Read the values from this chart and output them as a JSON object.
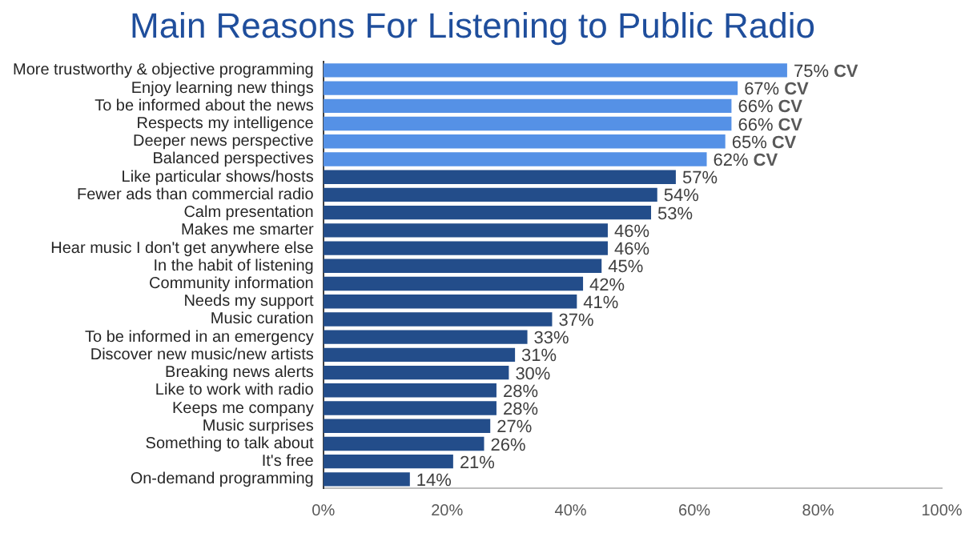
{
  "chart_data": {
    "type": "bar",
    "orientation": "horizontal",
    "title": "Main Reasons For Listening to Public Radio",
    "categories": [
      "More trustworthy & objective programming",
      "Enjoy learning new things",
      "To be informed about the news",
      "Respects my intelligence",
      "Deeper news perspective",
      "Balanced perspectives",
      "Like particular shows/hosts",
      "Fewer ads than commercial radio",
      "Calm presentation",
      "Makes me smarter",
      "Hear music I don't get anywhere else",
      "In the habit of listening",
      "Community information",
      "Needs my support",
      "Music curation",
      "To be informed in an emergency",
      "Discover new music/new artists",
      "Breaking news alerts",
      "Like to work with radio",
      "Keeps me company",
      "Music surprises",
      "Something to talk about",
      "It's free",
      "On-demand programming"
    ],
    "values": [
      75,
      67,
      66,
      66,
      65,
      62,
      57,
      54,
      53,
      46,
      46,
      45,
      42,
      41,
      37,
      33,
      31,
      30,
      28,
      28,
      27,
      26,
      21,
      14
    ],
    "value_labels": [
      "75%",
      "67%",
      "66%",
      "66%",
      "65%",
      "62%",
      "57%",
      "54%",
      "53%",
      "46%",
      "46%",
      "45%",
      "42%",
      "41%",
      "37%",
      "33%",
      "31%",
      "30%",
      "28%",
      "28%",
      "27%",
      "26%",
      "21%",
      "14%"
    ],
    "colors": [
      "#5591e6",
      "#5591e6",
      "#5591e6",
      "#5591e6",
      "#5591e6",
      "#5591e6",
      "#234d8a",
      "#234d8a",
      "#234d8a",
      "#234d8a",
      "#234d8a",
      "#234d8a",
      "#234d8a",
      "#234d8a",
      "#234d8a",
      "#234d8a",
      "#234d8a",
      "#234d8a",
      "#234d8a",
      "#234d8a",
      "#234d8a",
      "#234d8a",
      "#234d8a",
      "#234d8a"
    ],
    "xlim": [
      0,
      100
    ],
    "xticks": [
      {
        "value": 0,
        "label": "0%"
      },
      {
        "value": 20,
        "label": "20%"
      },
      {
        "value": 40,
        "label": "40%"
      },
      {
        "value": 60,
        "label": "60%"
      },
      {
        "value": 80,
        "label": "80%"
      },
      {
        "value": 100,
        "label": "100%"
      }
    ],
    "grid": false,
    "legend": false,
    "annotations": [
      {
        "text": "CV",
        "x": 75,
        "y": "More trustworthy & objective programming"
      },
      {
        "text": "CV",
        "x": 67,
        "y": "Enjoy learning new things"
      },
      {
        "text": "CV",
        "x": 66,
        "y": "To be informed about the news"
      },
      {
        "text": "CV",
        "x": 66,
        "y": "Respects my intelligence"
      },
      {
        "text": "CV",
        "x": 65,
        "y": "Deeper news perspective"
      },
      {
        "text": "CV",
        "x": 62,
        "y": "Balanced perspectives"
      }
    ]
  }
}
